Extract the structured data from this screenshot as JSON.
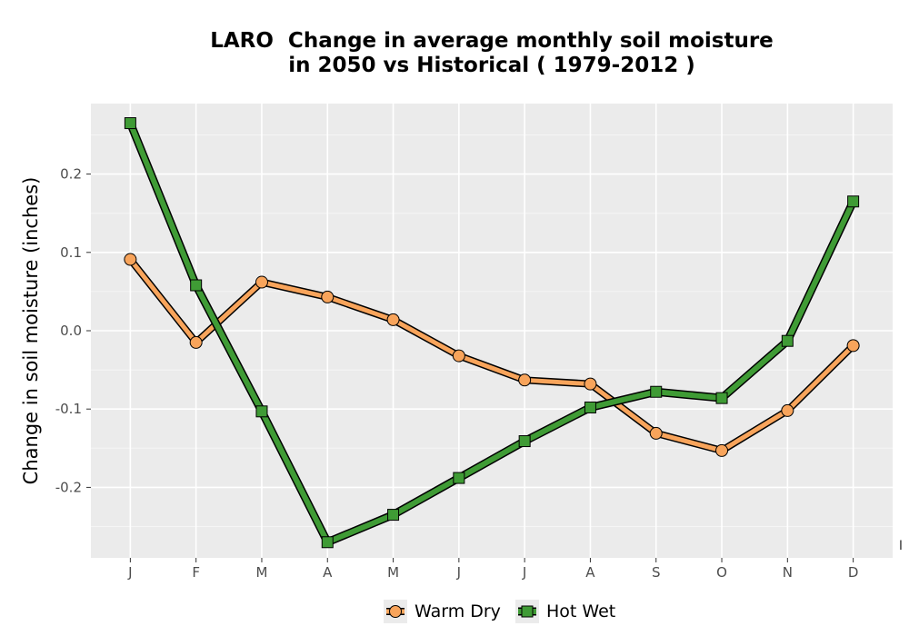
{
  "chart_data": {
    "type": "line",
    "title": "LARO  Change in average monthly soil moisture\nin 2050 vs Historical ( 1979-2012 )",
    "title_lines": [
      "LARO  Change in average monthly soil moisture",
      "in 2050 vs Historical ( 1979-2012 )"
    ],
    "xlabel": "",
    "ylabel": "Change in soil moisture (inches)",
    "categories": [
      "J",
      "F",
      "M",
      "A",
      "M",
      "J",
      "J",
      "A",
      "S",
      "O",
      "N",
      "D"
    ],
    "yticks": [
      0.2,
      0.1,
      0.0,
      -0.1,
      -0.2
    ],
    "ytick_labels": [
      "0.2",
      "0.1",
      "0.0",
      "-0.1",
      "-0.2"
    ],
    "ylim": [
      -0.29,
      0.29
    ],
    "grid": true,
    "legend_position": "bottom",
    "series": [
      {
        "name": "Warm Dry",
        "marker": "circle",
        "color": "#f8a45b",
        "values": [
          0.091,
          -0.015,
          0.062,
          0.043,
          0.014,
          -0.032,
          -0.063,
          -0.068,
          -0.131,
          -0.153,
          -0.102,
          -0.019
        ]
      },
      {
        "name": "Hot Wet",
        "marker": "square",
        "color": "#3f9b35",
        "values": [
          0.265,
          0.058,
          -0.103,
          -0.27,
          -0.235,
          -0.188,
          -0.141,
          -0.098,
          -0.078,
          -0.086,
          -0.013,
          0.165
        ]
      }
    ],
    "stray_mark": "I"
  }
}
